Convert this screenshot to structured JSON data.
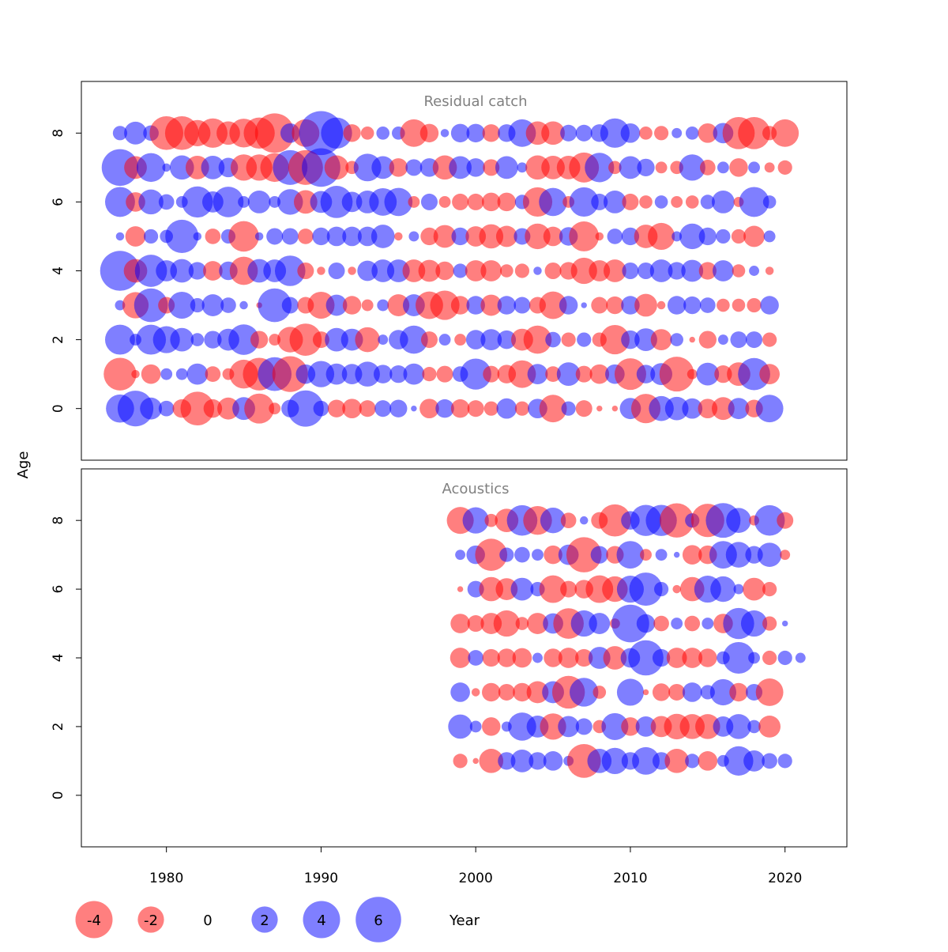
{
  "chart_data": {
    "type": "scatter",
    "subtype": "bubble-residual-plot",
    "ylabel": "Age",
    "xlabel": "Year",
    "xlim": [
      1974.5,
      2024.0
    ],
    "x_ticks": [
      1980,
      1990,
      2000,
      2010,
      2020
    ],
    "colors": {
      "negative": "#ff0000",
      "positive": "#0000ff",
      "opacity": 0.5
    },
    "legend": {
      "placement": "bottom",
      "entries": [
        {
          "value": -4,
          "label": "-4"
        },
        {
          "value": -2,
          "label": "-2"
        },
        {
          "value": 0,
          "label": "0"
        },
        {
          "value": 2,
          "label": "2"
        },
        {
          "value": 4,
          "label": "4"
        },
        {
          "value": 6,
          "label": "6"
        }
      ]
    },
    "panels": [
      {
        "title": "Residual catch",
        "ylim": [
          -1.5,
          9.5
        ],
        "y_ticks": [
          0,
          2,
          4,
          6,
          8
        ],
        "year_start": 1977,
        "ages": [
          8,
          7,
          6,
          5,
          4,
          3,
          2,
          1,
          0
        ],
        "residuals": [
          [
            0.6,
            1.5,
            0.7,
            -3.3,
            -3.3,
            -2,
            -2.5,
            -1.6,
            -2.4,
            -2.8,
            -4.5,
            1.1,
            -2.2,
            5.6,
            2.8,
            -0.9,
            -0.5,
            0.5,
            0.5,
            -2.2,
            -1,
            0.2,
            1,
            1,
            -0.9,
            0.9,
            2.2,
            -1.6,
            -1.6,
            0.8,
            0.8,
            0.9,
            2.5,
            1.1,
            -0.5,
            -0.6,
            0.3,
            0.5,
            -1.1,
            1.2,
            -3,
            -3,
            -0.6,
            -2.2
          ],
          [
            3.9,
            -1.5,
            2.4,
            0.2,
            1.7,
            -1.6,
            1.6,
            1.1,
            -2,
            -2,
            -2.4,
            3.5,
            -3.5,
            4.3,
            -1.7,
            -0.5,
            2.2,
            1.5,
            -1,
            0.8,
            1,
            -1.7,
            1.5,
            1,
            -0.8,
            1.5,
            0.3,
            -1.7,
            -1.6,
            -1.6,
            -2.6,
            2.5,
            -0.5,
            1.5,
            0.9,
            -0.4,
            -0.5,
            2,
            -0.7,
            0.4,
            -1,
            0.4,
            -0.3,
            -0.6
          ],
          [
            2.6,
            -1.1,
            1.8,
            0.7,
            0.4,
            2.8,
            1.3,
            2.7,
            0.4,
            1.5,
            0.4,
            1.9,
            -1.6,
            1.4,
            3,
            1.2,
            1.5,
            2.2,
            2.3,
            -0.4,
            0.8,
            -0.4,
            -0.8,
            -0.8,
            -1,
            -1,
            0.6,
            -2.5,
            2.3,
            -0.4,
            2.5,
            0.8,
            1.5,
            -0.8,
            -0.5,
            0.5,
            -0.4,
            -0.5,
            0.6,
            1.5,
            -0.3,
            2.6,
            0.5
          ],
          [
            0.2,
            -1.2,
            0.6,
            0.5,
            3.2,
            0.2,
            -0.7,
            0.6,
            -2.7,
            0.2,
            0.8,
            0.8,
            -0.7,
            0.9,
            1.1,
            1.1,
            1.1,
            1.6,
            -0.2,
            0.3,
            -0.9,
            -1.5,
            0.9,
            -1.2,
            -1.7,
            -1.3,
            0.8,
            -1.9,
            -1.1,
            1,
            -2.6,
            -0.2,
            0.7,
            0.9,
            -1.6,
            -2.1,
            0.3,
            1.9,
            0.9,
            0.6,
            -0.6,
            -1.3,
            0.4
          ],
          [
            4.6,
            -1.6,
            3,
            1.3,
            1.6,
            0.9,
            -1.1,
            1,
            -2.3,
            1.6,
            1.5,
            2.7,
            -0.8,
            -0.2,
            0.8,
            -0.2,
            1.2,
            1.5,
            1.5,
            -1.5,
            -1.4,
            -1,
            0.6,
            -1.3,
            -1.3,
            -0.5,
            -0.6,
            0.2,
            -0.8,
            -0.9,
            -2,
            -1.3,
            -1.5,
            0.8,
            0.8,
            1.5,
            0.9,
            1.4,
            -0.9,
            1.3,
            -0.5,
            0.3,
            -0.2
          ],
          [
            0.3,
            -2,
            3.3,
            -0.8,
            2.1,
            0.6,
            1.4,
            0.7,
            0.2,
            -0.1,
            3.3,
            0.8,
            -0.8,
            -2.1,
            1.3,
            -1,
            -0.4,
            0.4,
            -1.4,
            1.4,
            -2.2,
            -2.5,
            -1,
            1,
            -1.3,
            1,
            0.8,
            -0.8,
            -2.2,
            1,
            0.1,
            -0.8,
            -0.9,
            1,
            -1.5,
            -0.2,
            1,
            0.9,
            0.7,
            -0.5,
            -0.5,
            -0.6,
            1
          ],
          [
            2.6,
            0.4,
            2.6,
            2.1,
            1.6,
            0.5,
            0.9,
            1.4,
            2.7,
            -0.9,
            -0.4,
            -1.9,
            -3,
            -0.8,
            1.6,
            1.4,
            -1.8,
            0.3,
            1.1,
            2.3,
            -0.8,
            0.4,
            -0.4,
            1.1,
            1.3,
            1,
            -1.4,
            -2.3,
            0.7,
            -0.6,
            0.6,
            -0.6,
            -2.5,
            1,
            1.5,
            -1.3,
            0.5,
            -0.1,
            -0.9,
            0.3,
            0.8,
            0.8,
            -0.6
          ],
          [
            -3.1,
            -0.2,
            -1.1,
            0.4,
            0.4,
            1.3,
            -0.7,
            -0.4,
            -2.4,
            -3.1,
            3.3,
            -3.7,
            1.1,
            2,
            1.3,
            1.2,
            1.8,
            1,
            0.9,
            1.3,
            -0.6,
            -0.8,
            0.7,
            2.8,
            -0.8,
            -1,
            -2.2,
            1.2,
            -0.7,
            1.6,
            -0.8,
            -1.1,
            1.1,
            -2.9,
            1,
            1.4,
            -3.5,
            -0.3,
            1.5,
            -0.9,
            -1.6,
            3,
            -1.2
          ],
          [
            2.3,
            3.7,
            1.4,
            0.7,
            -1,
            -3.3,
            -1,
            -1.4,
            1.5,
            -2.6,
            -0.4,
            0.9,
            3.8,
            0.7,
            -0.9,
            -1.1,
            -0.8,
            0.8,
            0.9,
            0.1,
            -1.1,
            1,
            -1,
            -0.8,
            -0.6,
            1.2,
            -0.6,
            1.1,
            -2.2,
            0.6,
            -0.8,
            -0.1,
            -0.1,
            1.3,
            -2.5,
            1.8,
            1.6,
            1.2,
            -1.1,
            -1.5,
            1.3,
            -0.9,
            2.2
          ]
        ]
      },
      {
        "title": "Acoustics",
        "ylim": [
          -1.5,
          9.5
        ],
        "y_ticks": [
          0,
          2,
          4,
          6,
          8
        ],
        "year_start": 1999,
        "ages": [
          8,
          7,
          6,
          5,
          4,
          3,
          2,
          1
        ],
        "residuals": [
          [
            -2.1,
            2,
            -0.5,
            -1.6,
            2.7,
            -2.4,
            1.9,
            -0.7,
            0.2,
            -0.8,
            -3,
            1,
            2.8,
            2.8,
            -3.4,
            0.6,
            -3.2,
            3.5,
            1.8,
            -0.3,
            2.7,
            -0.8
          ],
          [
            0.3,
            1,
            -3,
            0.6,
            0.7,
            0.4,
            -1,
            1.2,
            -3.6,
            0.9,
            -0.9,
            2.2,
            -0.4,
            0.4,
            0.1,
            -1.1,
            -1,
            2.2,
            1.9,
            0.9,
            1.7,
            -0.3
          ],
          [
            -0.1,
            0.8,
            -1.7,
            -1.4,
            1.5,
            0.6,
            -2.2,
            -0.8,
            -1,
            -2.2,
            -1.9,
            2.1,
            3.2,
            0.6,
            -0.2,
            -1.7,
            2.1,
            1.9,
            0.3,
            -1.5,
            -0.6
          ],
          [
            -1.1,
            -0.8,
            -1.3,
            -2,
            -0.5,
            -1.3,
            1.2,
            -2.7,
            2,
            1.3,
            -0.3,
            4.1,
            1,
            -0.7,
            0.4,
            -0.7,
            0.4,
            -1.1,
            2.8,
            2,
            -0.6,
            0.1
          ],
          [
            -1.2,
            0.7,
            -0.9,
            -1,
            -1.1,
            0.3,
            -1,
            -1.2,
            -0.9,
            1.4,
            -1.6,
            1.1,
            3.6,
            0.9,
            -1.2,
            -1.2,
            -1,
            0.5,
            2.9,
            0.4,
            -0.6,
            0.6,
            0.3
          ],
          [
            1.1,
            -0.2,
            -1,
            -0.8,
            -1,
            -1.4,
            1.4,
            -3.1,
            2.4,
            -0.5,
            0,
            2.1,
            -0.1,
            -0.9,
            -0.8,
            1.1,
            0.6,
            2,
            -1,
            0.8,
            -2.2
          ],
          [
            1.7,
            0.4,
            -1,
            0.3,
            2.3,
            1.4,
            -2,
            1.3,
            0.8,
            -0.5,
            2.1,
            -1,
            1.2,
            -1.3,
            -1.9,
            -1.8,
            -1.8,
            1.2,
            1.8,
            0.5,
            -1.4
          ],
          [
            -0.6,
            -0.1,
            -1.7,
            0.9,
            1.5,
            0.9,
            1.1,
            0.3,
            -3.3,
            1.7,
            2,
            0.9,
            2.2,
            0.9,
            -1.7,
            0.6,
            -1.1,
            0.4,
            2.5,
            1.3,
            0.7,
            0.6
          ]
        ]
      }
    ]
  }
}
